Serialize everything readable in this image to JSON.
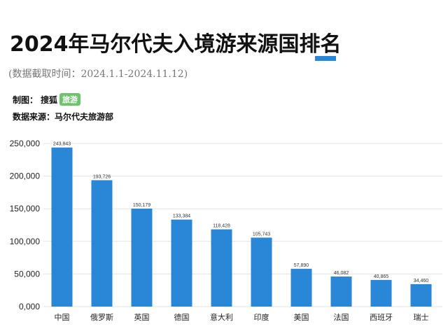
{
  "header": {
    "title": "2024年马尔代夫入境游来源国排名",
    "subtitle": "(数据截取时间：2024.1.1-2024.11.12)",
    "maker_label": "制图：",
    "maker_brand": "搜狐",
    "maker_tag": "旅游",
    "source_label": "数据来源：",
    "source_value": "马尔代夫旅游部"
  },
  "colors": {
    "bar": "#2a87d8",
    "accent": "#2a87d8",
    "tag": "#6dc46a",
    "grid": "#e3e3e3"
  },
  "chart_data": {
    "type": "bar",
    "categories": [
      "中国",
      "俄罗斯",
      "英国",
      "德国",
      "意大利",
      "印度",
      "美国",
      "法国",
      "西班牙",
      "瑞士"
    ],
    "values": [
      243843,
      193726,
      150179,
      133384,
      118428,
      105743,
      57890,
      46082,
      40865,
      34460
    ],
    "data_labels": [
      "243,843",
      "193,726",
      "150,179",
      "133,384",
      "118,428",
      "105,743",
      "57,890",
      "46,082",
      "40,865",
      "34,460"
    ],
    "ylim": [
      0,
      250000
    ],
    "yticks": [
      0,
      50000,
      100000,
      150000,
      200000,
      250000
    ],
    "ytick_labels": [
      "0,000",
      "50,000",
      "100,000",
      "150,000",
      "200,000",
      "250,000"
    ],
    "grid": true,
    "xlabel": "",
    "ylabel": ""
  }
}
